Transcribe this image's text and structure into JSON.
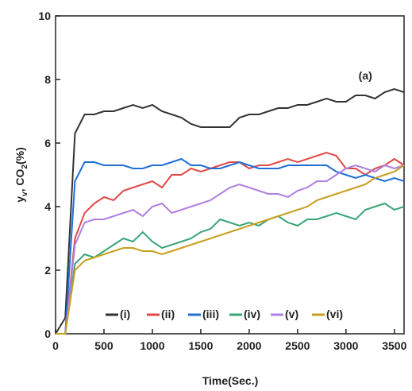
{
  "chart_data": {
    "type": "line",
    "xlabel": "Time(Sec.)",
    "ylabel_parts": [
      "y",
      "v",
      ", CO",
      "2",
      "(%)"
    ],
    "annotation": {
      "text": "(a)",
      "x": 3200,
      "y": 8.0,
      "color": "#e02020"
    },
    "xlim": [
      0,
      3600
    ],
    "ylim": [
      0,
      10
    ],
    "xticks": [
      0,
      500,
      1000,
      1500,
      2000,
      2500,
      3000,
      3500
    ],
    "yticks": [
      0,
      2,
      4,
      6,
      8,
      10
    ],
    "legend": "bottom",
    "x": [
      0,
      100,
      200,
      300,
      400,
      500,
      600,
      700,
      800,
      900,
      1000,
      1100,
      1200,
      1300,
      1400,
      1500,
      1600,
      1700,
      1800,
      1900,
      2000,
      2100,
      2200,
      2300,
      2400,
      2500,
      2600,
      2700,
      2800,
      2900,
      3000,
      3100,
      3200,
      3300,
      3400,
      3500,
      3600
    ],
    "series": [
      {
        "name": "(i)",
        "color": "#333333",
        "values": [
          0,
          0.5,
          6.3,
          6.9,
          6.9,
          7.0,
          7.0,
          7.1,
          7.2,
          7.1,
          7.2,
          7.0,
          6.9,
          6.8,
          6.6,
          6.5,
          6.5,
          6.5,
          6.5,
          6.8,
          6.9,
          6.9,
          7.0,
          7.1,
          7.1,
          7.2,
          7.2,
          7.3,
          7.4,
          7.3,
          7.3,
          7.5,
          7.5,
          7.4,
          7.6,
          7.7,
          7.6
        ]
      },
      {
        "name": "(ii)",
        "color": "#e04848",
        "values": [
          0,
          0,
          3.0,
          3.8,
          4.1,
          4.3,
          4.2,
          4.5,
          4.6,
          4.7,
          4.8,
          4.6,
          5.0,
          5.0,
          5.2,
          5.1,
          5.2,
          5.3,
          5.4,
          5.4,
          5.2,
          5.3,
          5.3,
          5.4,
          5.5,
          5.4,
          5.5,
          5.6,
          5.7,
          5.6,
          5.2,
          5.2,
          5.0,
          5.2,
          5.3,
          5.5,
          5.3
        ]
      },
      {
        "name": "(iii)",
        "color": "#1f6fd6",
        "values": [
          0,
          0,
          4.8,
          5.4,
          5.4,
          5.3,
          5.3,
          5.3,
          5.2,
          5.2,
          5.3,
          5.3,
          5.4,
          5.5,
          5.3,
          5.3,
          5.2,
          5.2,
          5.3,
          5.4,
          5.3,
          5.2,
          5.2,
          5.2,
          5.3,
          5.3,
          5.3,
          5.3,
          5.3,
          5.1,
          5.0,
          4.9,
          5.0,
          4.9,
          4.8,
          4.9,
          4.8
        ]
      },
      {
        "name": "(iv)",
        "color": "#3aa576",
        "values": [
          0,
          0,
          2.2,
          2.5,
          2.4,
          2.6,
          2.8,
          3.0,
          2.9,
          3.2,
          2.9,
          2.7,
          2.8,
          2.9,
          3.0,
          3.2,
          3.3,
          3.6,
          3.5,
          3.4,
          3.5,
          3.4,
          3.6,
          3.7,
          3.5,
          3.4,
          3.6,
          3.6,
          3.7,
          3.8,
          3.7,
          3.6,
          3.9,
          4.0,
          4.1,
          3.9,
          4.0
        ]
      },
      {
        "name": "(v)",
        "color": "#b07fe0",
        "values": [
          0,
          0,
          2.8,
          3.5,
          3.6,
          3.6,
          3.7,
          3.8,
          3.9,
          3.7,
          4.0,
          4.1,
          3.8,
          3.9,
          4.0,
          4.1,
          4.2,
          4.4,
          4.6,
          4.7,
          4.6,
          4.5,
          4.4,
          4.4,
          4.3,
          4.5,
          4.6,
          4.8,
          4.8,
          5.0,
          5.2,
          5.3,
          5.2,
          5.1,
          5.3,
          5.2,
          5.3
        ]
      },
      {
        "name": "(vi)",
        "color": "#c8a020",
        "values": [
          0,
          0,
          2.0,
          2.3,
          2.4,
          2.5,
          2.6,
          2.7,
          2.7,
          2.6,
          2.6,
          2.5,
          2.6,
          2.7,
          2.8,
          2.9,
          3.0,
          3.1,
          3.2,
          3.3,
          3.4,
          3.5,
          3.6,
          3.7,
          3.8,
          3.9,
          4.0,
          4.2,
          4.3,
          4.4,
          4.5,
          4.6,
          4.7,
          4.9,
          5.0,
          5.1,
          5.3
        ]
      }
    ]
  }
}
